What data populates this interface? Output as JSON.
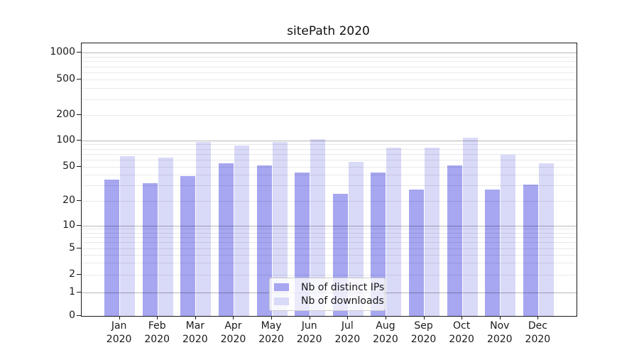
{
  "chart_data": {
    "type": "bar",
    "title": "sitePath 2020",
    "categories": [
      "Jan",
      "Feb",
      "Mar",
      "Apr",
      "May",
      "Jun",
      "Jul",
      "Aug",
      "Sep",
      "Oct",
      "Nov",
      "Dec"
    ],
    "category_year": "2020",
    "series": [
      {
        "name": "Nb of distinct IPs",
        "color": "#a6a6f1",
        "values": [
          35,
          32,
          39,
          55,
          52,
          43,
          24,
          43,
          27,
          52,
          27,
          31
        ]
      },
      {
        "name": "Nb of downloads",
        "color": "#d9d9f8",
        "values": [
          66,
          64,
          96,
          88,
          96,
          103,
          57,
          82,
          82,
          108,
          68,
          55
        ]
      }
    ],
    "y_axis": {
      "scale": "symlog",
      "tick_labels": [
        0,
        1,
        2,
        5,
        10,
        20,
        50,
        100,
        200,
        500,
        1000
      ],
      "range_top": 1283
    },
    "xlabel": "",
    "ylabel": "",
    "grid": "both",
    "legend_position": "lower-center"
  }
}
